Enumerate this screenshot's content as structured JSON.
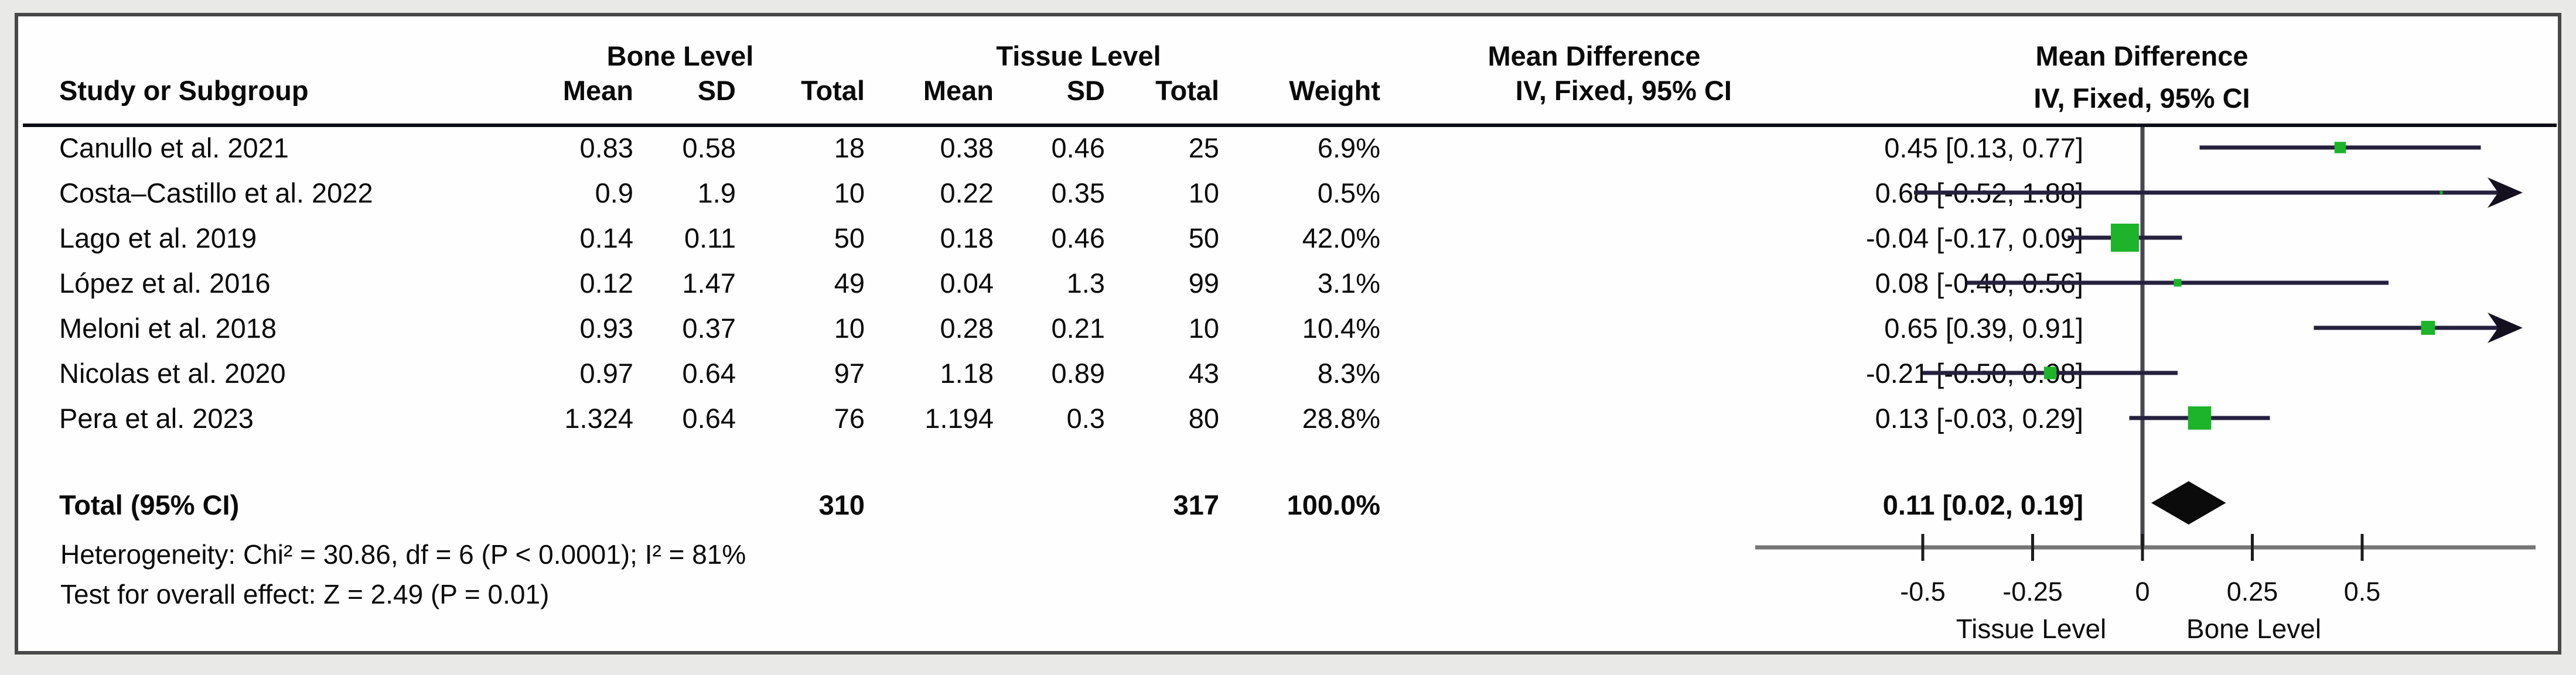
{
  "table": {
    "group1_header": "Bone Level",
    "group2_header": "Tissue Level",
    "effect_header": "Mean Difference",
    "effect_subheader": "IV, Fixed, 95% CI",
    "plot_header": "Mean Difference",
    "plot_subheader": "IV, Fixed, 95% CI",
    "columns": {
      "study": "Study or Subgroup",
      "mean": "Mean",
      "sd": "SD",
      "total": "Total",
      "weight": "Weight"
    },
    "rows": [
      {
        "study": "Canullo et al. 2021",
        "bone_mean": "0.83",
        "bone_sd": "0.58",
        "bone_total": "18",
        "tissue_mean": "0.38",
        "tissue_sd": "0.46",
        "tissue_total": "25",
        "weight": "6.9%",
        "ci": "0.45 [0.13, 0.77]"
      },
      {
        "study": "Costa–Castillo et al. 2022",
        "bone_mean": "0.9",
        "bone_sd": "1.9",
        "bone_total": "10",
        "tissue_mean": "0.22",
        "tissue_sd": "0.35",
        "tissue_total": "10",
        "weight": "0.5%",
        "ci": "0.68 [-0.52, 1.88]"
      },
      {
        "study": "Lago et al. 2019",
        "bone_mean": "0.14",
        "bone_sd": "0.11",
        "bone_total": "50",
        "tissue_mean": "0.18",
        "tissue_sd": "0.46",
        "tissue_total": "50",
        "weight": "42.0%",
        "ci": "-0.04 [-0.17, 0.09]"
      },
      {
        "study": "López et al. 2016",
        "bone_mean": "0.12",
        "bone_sd": "1.47",
        "bone_total": "49",
        "tissue_mean": "0.04",
        "tissue_sd": "1.3",
        "tissue_total": "99",
        "weight": "3.1%",
        "ci": "0.08 [-0.40, 0.56]"
      },
      {
        "study": "Meloni et al. 2018",
        "bone_mean": "0.93",
        "bone_sd": "0.37",
        "bone_total": "10",
        "tissue_mean": "0.28",
        "tissue_sd": "0.21",
        "tissue_total": "10",
        "weight": "10.4%",
        "ci": "0.65 [0.39, 0.91]"
      },
      {
        "study": "Nicolas et al. 2020",
        "bone_mean": "0.97",
        "bone_sd": "0.64",
        "bone_total": "97",
        "tissue_mean": "1.18",
        "tissue_sd": "0.89",
        "tissue_total": "43",
        "weight": "8.3%",
        "ci": "-0.21 [-0.50, 0.08]"
      },
      {
        "study": "Pera et al. 2023",
        "bone_mean": "1.324",
        "bone_sd": "0.64",
        "bone_total": "76",
        "tissue_mean": "1.194",
        "tissue_sd": "0.3",
        "tissue_total": "80",
        "weight": "28.8%",
        "ci": "0.13 [-0.03, 0.29]"
      }
    ],
    "total_row": {
      "label": "Total (95% CI)",
      "bone_total": "310",
      "tissue_total": "317",
      "weight": "100.0%",
      "ci": "0.11 [0.02, 0.19]"
    },
    "footer": {
      "heterogeneity": "Heterogeneity: Chi² = 30.86, df = 6 (P < 0.0001); I² = 81%",
      "overall_effect": "Test for overall effect: Z = 2.49 (P = 0.01)"
    }
  },
  "chart_data": {
    "type": "forest",
    "effect_measure": "Mean Difference, IV, Fixed, 95% CI",
    "studies": [
      {
        "name": "Canullo et al. 2021",
        "mean": 0.45,
        "lo": 0.13,
        "hi": 0.77,
        "weight_pct": 6.9
      },
      {
        "name": "Costa–Castillo et al. 2022",
        "mean": 0.68,
        "lo": -0.52,
        "hi": 1.88,
        "weight_pct": 0.5
      },
      {
        "name": "Lago et al. 2019",
        "mean": -0.04,
        "lo": -0.17,
        "hi": 0.09,
        "weight_pct": 42.0
      },
      {
        "name": "López et al. 2016",
        "mean": 0.08,
        "lo": -0.4,
        "hi": 0.56,
        "weight_pct": 3.1
      },
      {
        "name": "Meloni et al. 2018",
        "mean": 0.65,
        "lo": 0.39,
        "hi": 0.91,
        "weight_pct": 10.4
      },
      {
        "name": "Nicolas et al. 2020",
        "mean": -0.21,
        "lo": -0.5,
        "hi": 0.08,
        "weight_pct": 8.3
      },
      {
        "name": "Pera et al. 2023",
        "mean": 0.13,
        "lo": -0.03,
        "hi": 0.29,
        "weight_pct": 28.8
      }
    ],
    "total": {
      "mean": 0.11,
      "lo": 0.02,
      "hi": 0.19
    },
    "axis": {
      "ticks": [
        -0.5,
        -0.25,
        0,
        0.25,
        0.5
      ],
      "tick_labels": [
        "-0.5",
        "-0.25",
        "0",
        "0.25",
        "0.5"
      ],
      "xlim": [
        -0.88,
        0.89
      ],
      "left_label": "Tissue Level",
      "right_label": "Bone Level"
    },
    "colors": {
      "marker_green": "#1db32a",
      "ci_line": "#26203f",
      "diamond": "#0b0b0b",
      "axis_line": "#757575",
      "zero_line": "#4a4754"
    }
  }
}
